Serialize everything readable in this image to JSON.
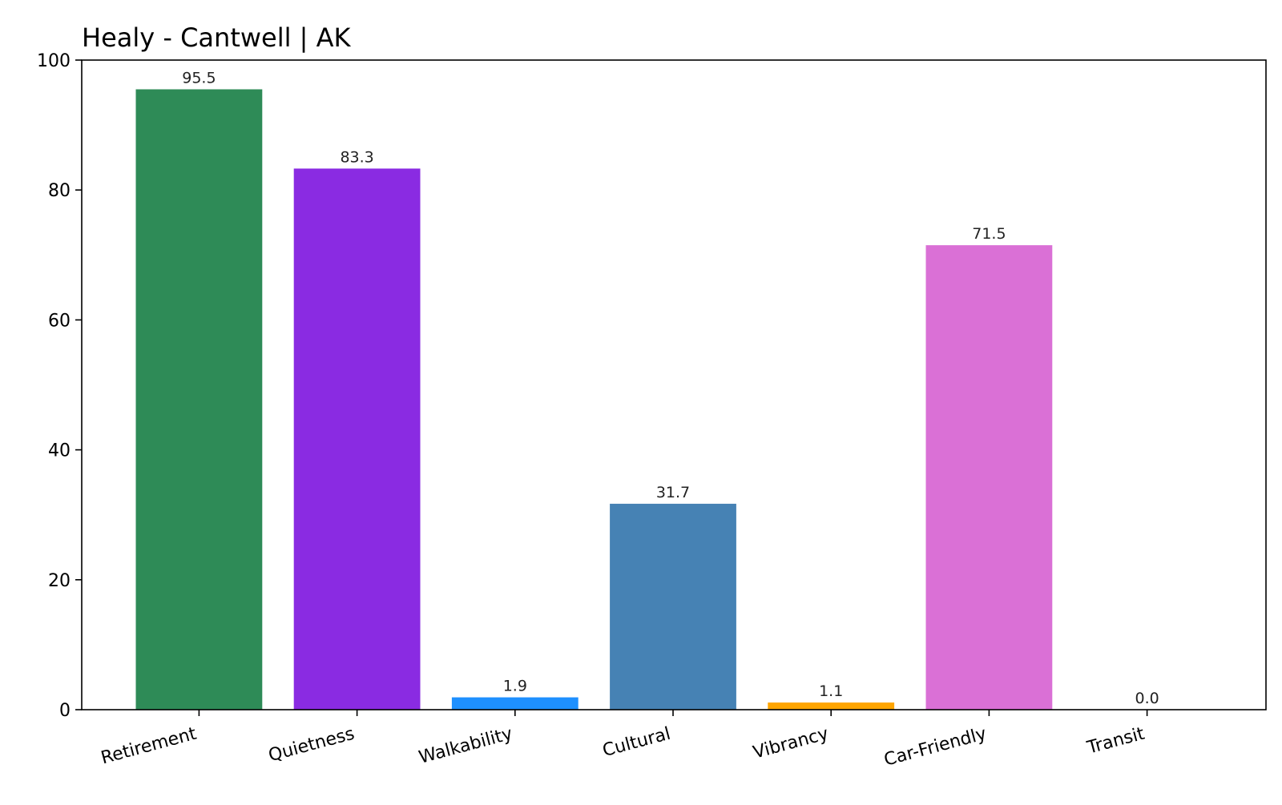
{
  "chart_data": {
    "type": "bar",
    "title": "Healy - Cantwell | AK",
    "xlabel": "",
    "ylabel": "",
    "categories": [
      "Retirement",
      "Quietness",
      "Walkability",
      "Cultural",
      "Vibrancy",
      "Car-Friendly",
      "Transit"
    ],
    "values": [
      95.5,
      83.3,
      1.9,
      31.7,
      1.1,
      71.5,
      0.0
    ],
    "value_labels": [
      "95.5",
      "83.3",
      "1.9",
      "31.7",
      "1.1",
      "71.5",
      "0.0"
    ],
    "colors": [
      "#2e8b57",
      "#8a2be2",
      "#1e90ff",
      "#4682b4",
      "#ffa500",
      "#da70d6",
      "#808080"
    ],
    "ylim": [
      0,
      100
    ],
    "yticks": [
      0,
      20,
      40,
      60,
      80,
      100
    ],
    "ytick_labels": [
      "0",
      "20",
      "40",
      "60",
      "80",
      "100"
    ],
    "grid": false,
    "legend": "none"
  }
}
